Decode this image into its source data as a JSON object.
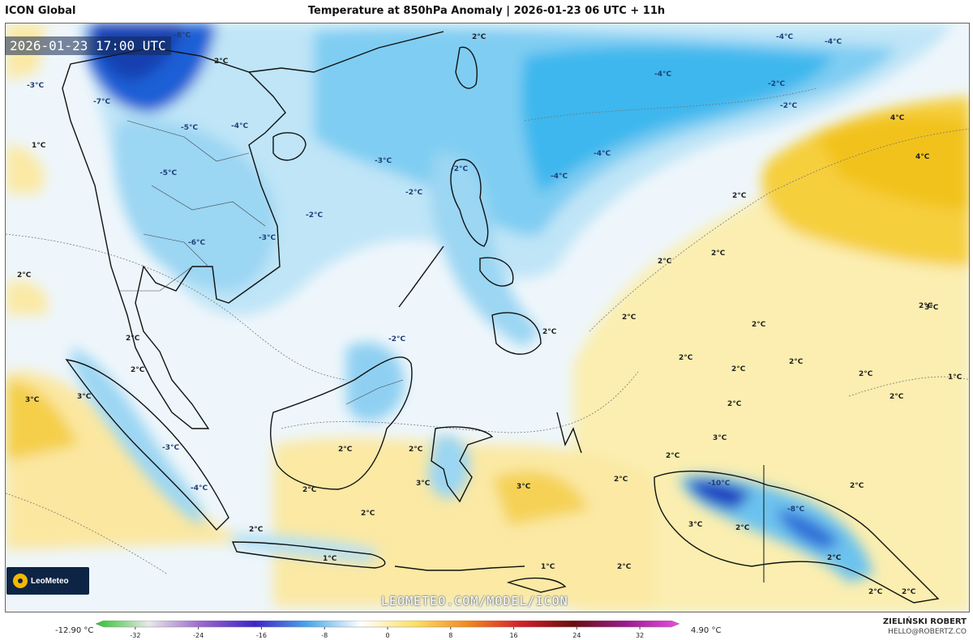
{
  "header": {
    "model": "ICON Global",
    "title": "Temperature at 850hPa Anomaly | 2026-01-23 06 UTC + 11h"
  },
  "map": {
    "timestamp": "2026-01-23 17:00 UTC",
    "watermark": "LEOMETEO.COM/MODEL/ICON",
    "logo_text": "LeoMeteo",
    "labels": [
      "-8°C",
      "-2°C",
      "2°C",
      "-4°C",
      "-4°C",
      "-4°C",
      "-7°C",
      "-4°C",
      "-5°C",
      "1°C",
      "2°C",
      "-3°C",
      "2°C",
      "-2°C",
      "-3°C",
      "-4°C",
      "-2°C",
      "-2°C",
      "4°C",
      "4°C",
      "-4°C",
      "2°C",
      "2°C",
      "2°C",
      "-3°C",
      "2°C",
      "-2°C",
      "2°C",
      "3°C",
      "2°C",
      "2°C",
      "3°C",
      "3°C",
      "2°C",
      "2°C",
      "2°C",
      "2°C",
      "2°C",
      "2°C",
      "2°C",
      "2°C",
      "1°C",
      "2°C",
      "2°C",
      "3°C",
      "2°C",
      "3°C",
      "2°C",
      "3°C",
      "-10°C",
      "2°C",
      "-8°C",
      "2°C",
      "3°C",
      "2°C",
      "2°C",
      "1°C",
      "1°C",
      "2°C",
      "2°C",
      "2°C",
      "2°C",
      "2°C",
      "-6°C",
      "-5°C",
      "-3°C",
      "-4°C",
      "-2°C"
    ]
  },
  "legend": {
    "min_label": "-12.90 °C",
    "max_label": "4.90 °C",
    "ticks": [
      "-32",
      "-24",
      "-16",
      "-8",
      "0",
      "8",
      "16",
      "24",
      "32"
    ],
    "tick_values": [
      -32,
      -24,
      -16,
      -8,
      0,
      8,
      16,
      24,
      32
    ],
    "range": [
      -36,
      36
    ],
    "colors": [
      "#2ec12e",
      "#e8e8e8",
      "#9966cc",
      "#3d24c8",
      "#4aa8ea",
      "#ffffff",
      "#ffe066",
      "#f28a1e",
      "#d6202a",
      "#6a0d0d",
      "#9b1d8f",
      "#e84ce0"
    ]
  },
  "footer": {
    "author": "ZIELIŃSKI ROBERT",
    "email": "HELLO@ROBERTZ.CO"
  }
}
